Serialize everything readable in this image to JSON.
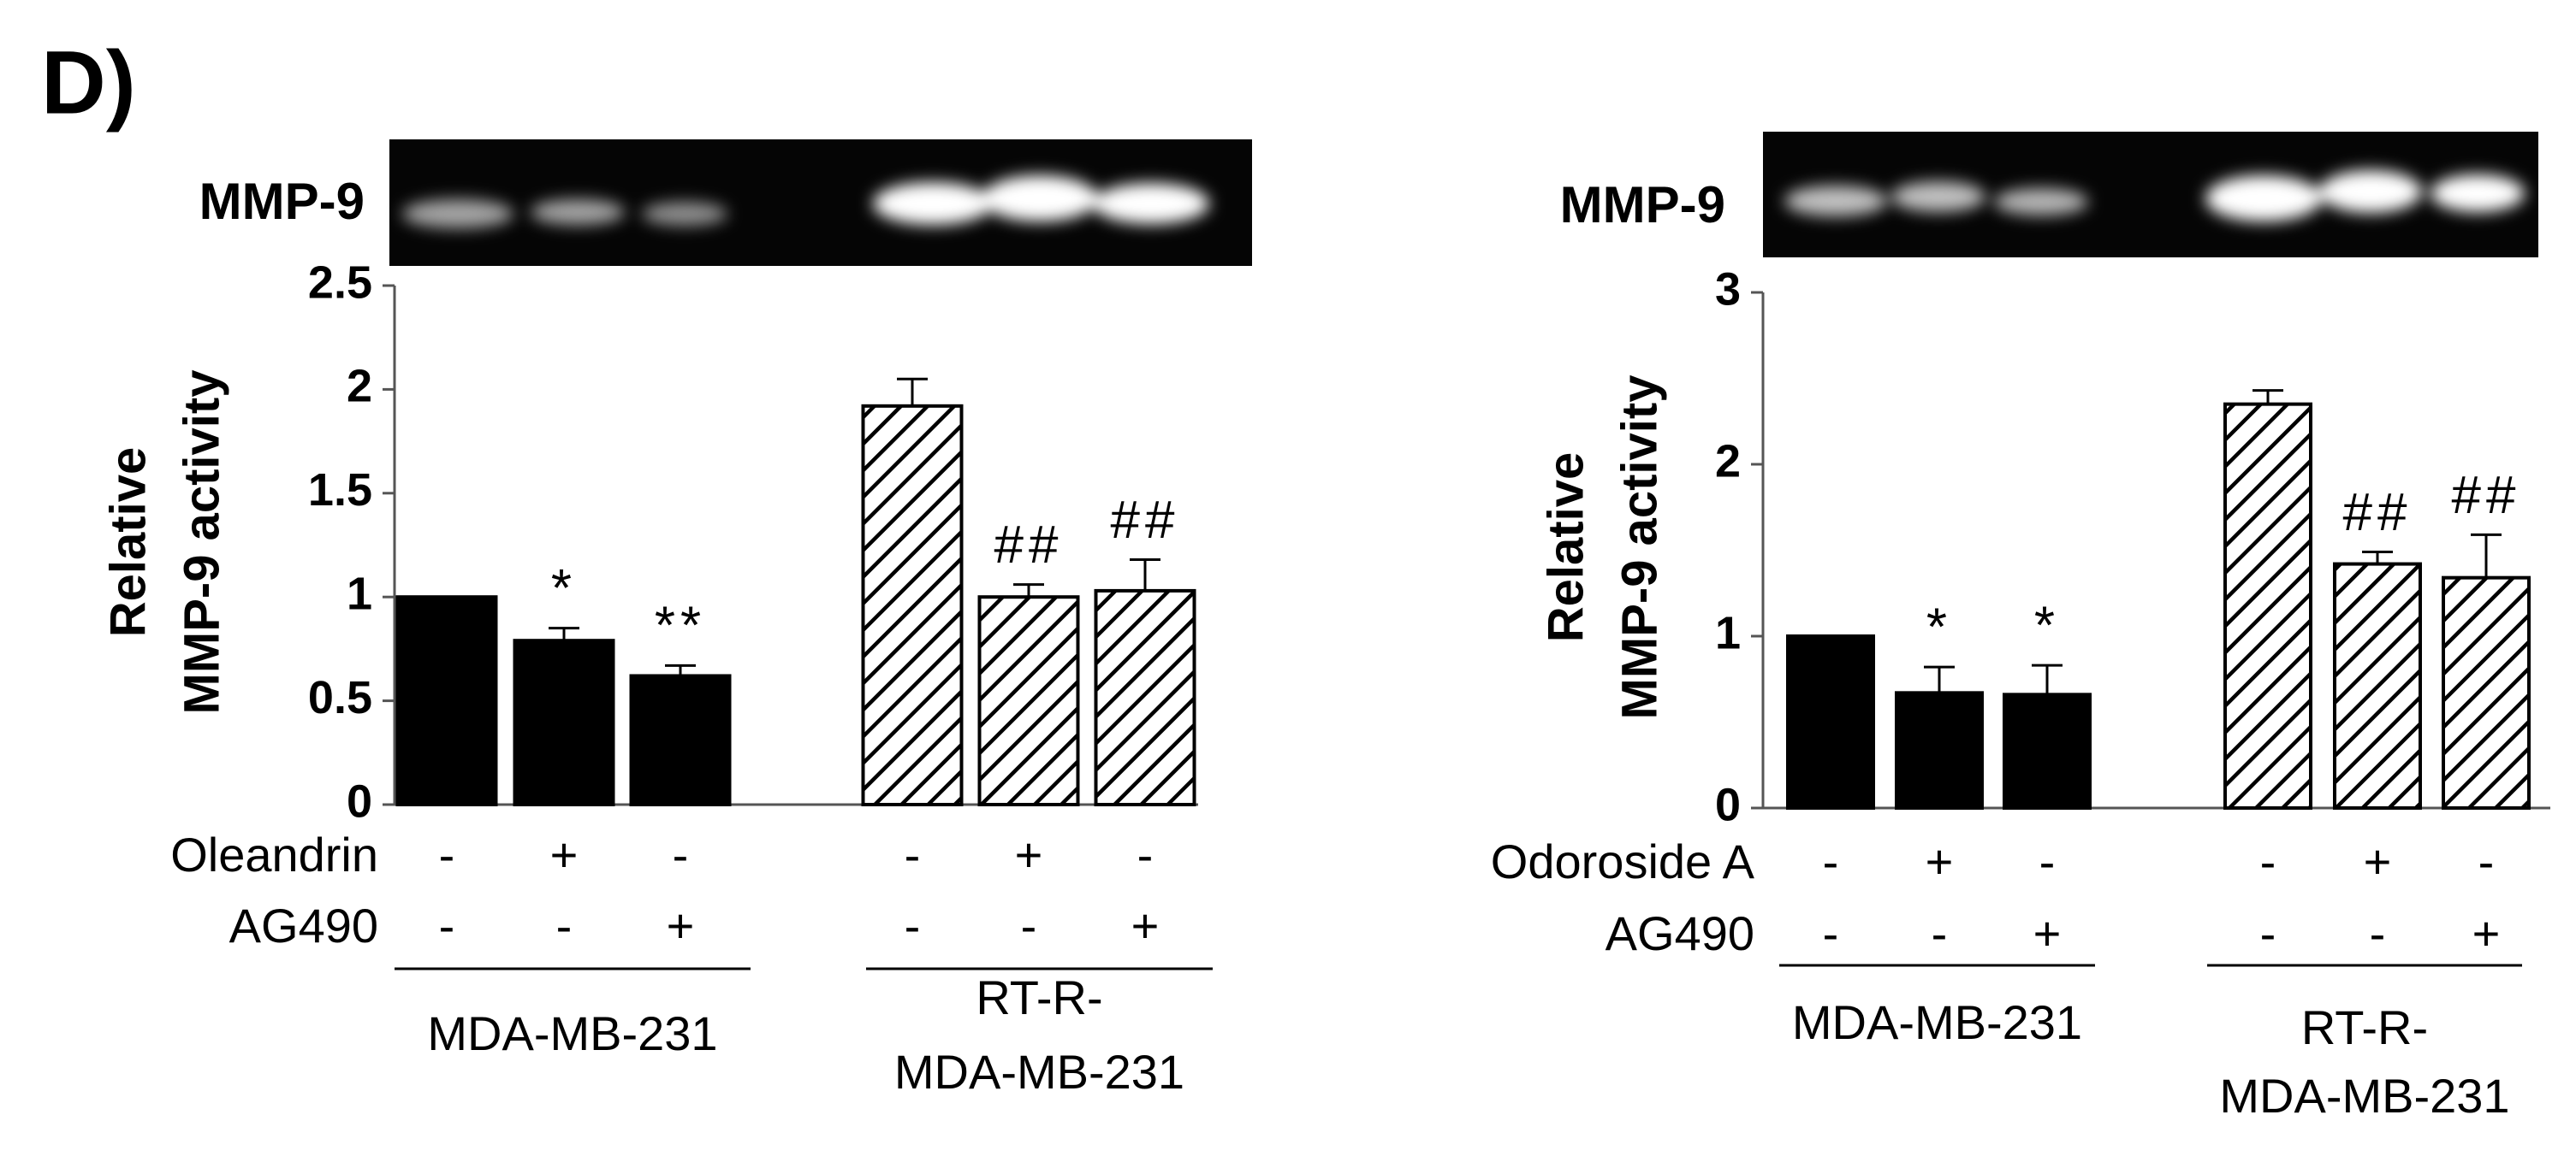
{
  "panel_label": "D)",
  "chart_data": [
    {
      "type": "bar",
      "gel_label": "MMP-9",
      "ylabel": [
        "Relative",
        "MMP-9 activity"
      ],
      "values": [
        1,
        0.79,
        0.62,
        1.92,
        1.0,
        1.03
      ],
      "errors": [
        0,
        0.06,
        0.05,
        0.13,
        0.06,
        0.15
      ],
      "annotations": [
        null,
        "*",
        "**",
        null,
        "##",
        "##"
      ],
      "fills": [
        "solid",
        "solid",
        "solid",
        "hatch",
        "hatch",
        "hatch"
      ],
      "color": "#000000",
      "ylim": [
        0,
        2.5
      ],
      "yticks": [
        0,
        0.5,
        1,
        1.5,
        2,
        2.5
      ],
      "treatments": [
        {
          "name": "Oleandrin",
          "marks": [
            "-",
            "+",
            "-",
            "-",
            "+",
            "-"
          ]
        },
        {
          "name": "AG490",
          "marks": [
            "-",
            "-",
            "+",
            "-",
            "-",
            "+"
          ]
        }
      ],
      "groups": [
        [
          "MDA-MB-231"
        ],
        [
          "RT-R-",
          "MDA-MB-231"
        ]
      ]
    },
    {
      "type": "bar",
      "gel_label": "MMP-9",
      "ylabel": [
        "Relative",
        "MMP-9 activity"
      ],
      "values": [
        1,
        0.67,
        0.66,
        2.35,
        1.42,
        1.34
      ],
      "errors": [
        0,
        0.15,
        0.17,
        0.08,
        0.07,
        0.25
      ],
      "annotations": [
        null,
        "*",
        "*",
        null,
        "##",
        "##"
      ],
      "fills": [
        "solid",
        "solid",
        "solid",
        "hatch",
        "hatch",
        "hatch"
      ],
      "color": "#000000",
      "ylim": [
        0,
        3
      ],
      "yticks": [
        0,
        1,
        2,
        3
      ],
      "treatments": [
        {
          "name": "Odoroside A",
          "marks": [
            "-",
            "+",
            "-",
            "-",
            "+",
            "-"
          ]
        },
        {
          "name": "AG490",
          "marks": [
            "-",
            "-",
            "+",
            "-",
            "-",
            "+"
          ]
        }
      ],
      "groups": [
        [
          "MDA-MB-231"
        ],
        [
          "RT-R-",
          "MDA-MB-231"
        ]
      ]
    }
  ]
}
